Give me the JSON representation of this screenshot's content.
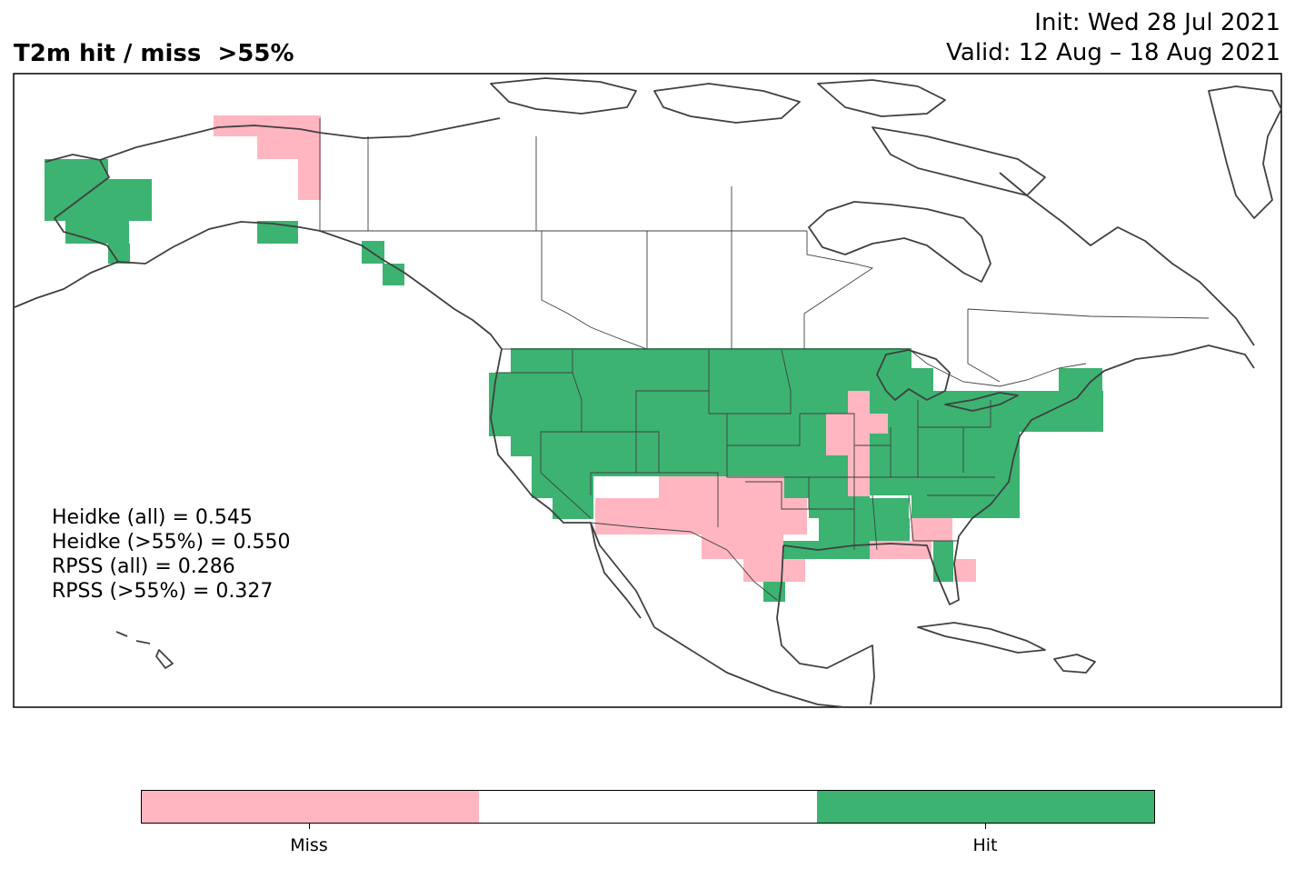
{
  "title": "T2m hit / miss  >55%",
  "init": "Init: Wed 28 Jul 2021",
  "valid": "Valid: 12 Aug – 18 Aug 2021",
  "map": {
    "region": "North America",
    "legend": [
      {
        "label": "Miss",
        "color": "#ffb6c1"
      },
      {
        "label": "",
        "color": "#ffffff"
      },
      {
        "label": "Hit",
        "color": "#3cb371"
      }
    ]
  },
  "stats": {
    "heidke_all": "Heidke (all) = 0.545",
    "heidke_55": "Heidke (>55%) = 0.550",
    "rpss_all": "RPSS (all) = 0.286",
    "rpss_55": "RPSS (>55%) = 0.327"
  },
  "colorbar": {
    "miss_label": "Miss",
    "hit_label": "Hit"
  },
  "colors": {
    "hit": "#3cb371",
    "miss": "#ffb6c1",
    "coast": "#404040"
  }
}
